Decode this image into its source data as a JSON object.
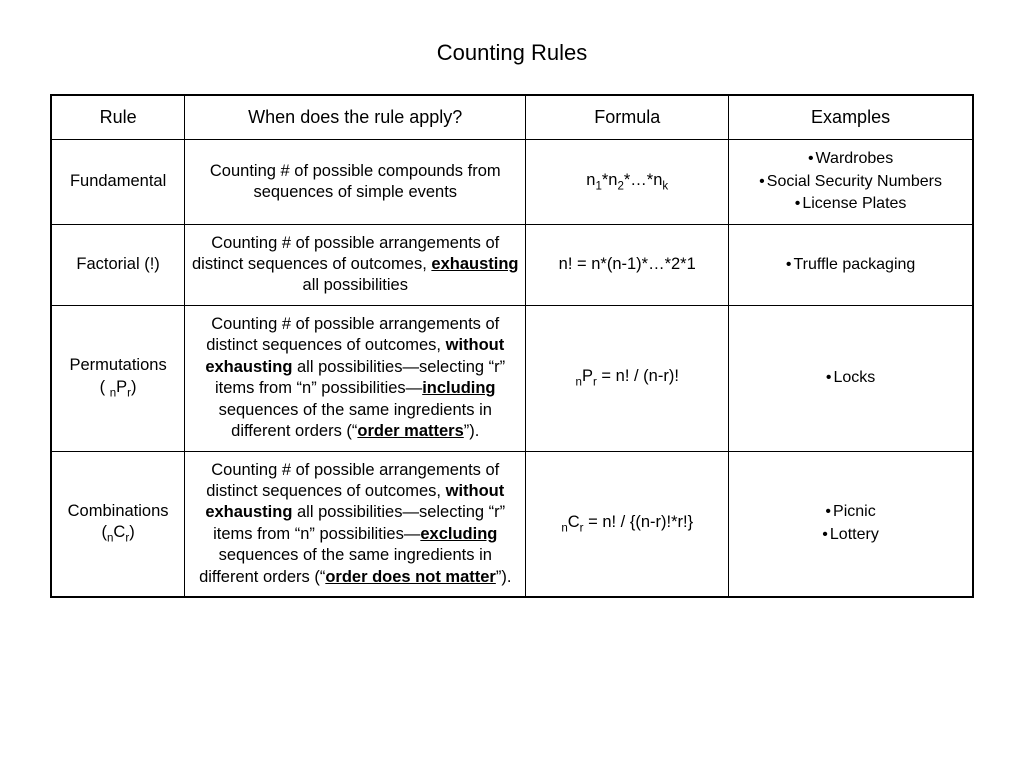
{
  "title": "Counting Rules",
  "table": {
    "columns": [
      "Rule",
      "When does the rule apply?",
      "Formula",
      "Examples"
    ],
    "column_widths_pct": [
      14.5,
      37,
      22,
      26.5
    ],
    "border_color": "#000000",
    "background_color": "#ffffff",
    "title_fontsize_pt": 22,
    "header_fontsize_pt": 18,
    "cell_fontsize_pt": 16.5,
    "rows": [
      {
        "rule_html": "Fundamental",
        "when_html": "Counting # of possible compounds from sequences of simple events",
        "formula_html": "n<span class=\"sub\">1</span>*n<span class=\"sub\">2</span>*…*n<span class=\"sub\">k</span>",
        "examples": [
          "Wardrobes",
          "Social Security Numbers",
          "License Plates"
        ]
      },
      {
        "rule_html": "Factorial (!)",
        "when_html": "Counting # of possible arrangements of distinct sequences of outcomes, <span class=\"bu\">exhausting</span> all possibilities",
        "formula_html": "n! = n*(n-1)*…*2*1",
        "examples": [
          "Truffle packaging"
        ]
      },
      {
        "rule_html": "Permutations<br>( <span class=\"sub\">n</span>P<span class=\"sub\">r</span>)",
        "when_html": "Counting # of possible arrangements of distinct sequences of outcomes, <span class=\"b\">without exhausting</span> all possibilities—selecting “r” items from “n” possibilities—<span class=\"bu\">including</span> sequences of the same ingredients in different orders (“<span class=\"bu\">order matters</span>”).",
        "formula_html": "<span class=\"sub\">n</span>P<span class=\"sub\">r</span> = n! / (n-r)!",
        "examples": [
          "Locks"
        ]
      },
      {
        "rule_html": "Combinations<br>(<span class=\"sub\">n</span>C<span class=\"sub\">r</span>)",
        "when_html": "Counting # of possible arrangements of distinct sequences of outcomes, <span class=\"b\">without exhausting</span> all possibilities—selecting “r” items from “n” possibilities—<span class=\"bu\">excluding</span> sequences of the same ingredients in different orders (“<span class=\"bu\">order does not matter</span>”).",
        "formula_html": "<span class=\"sub\">n</span>C<span class=\"sub\">r</span> = n! / {(n-r)!*r!}",
        "examples": [
          "Picnic",
          "Lottery"
        ]
      }
    ]
  }
}
